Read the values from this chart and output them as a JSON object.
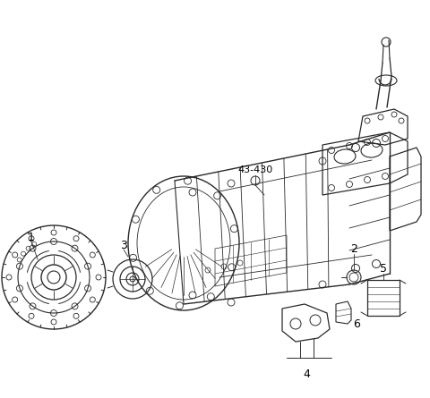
{
  "background_color": "#ffffff",
  "line_color": "#2a2a2a",
  "label_color": "#000000",
  "fig_width": 4.8,
  "fig_height": 4.45,
  "dpi": 100
}
